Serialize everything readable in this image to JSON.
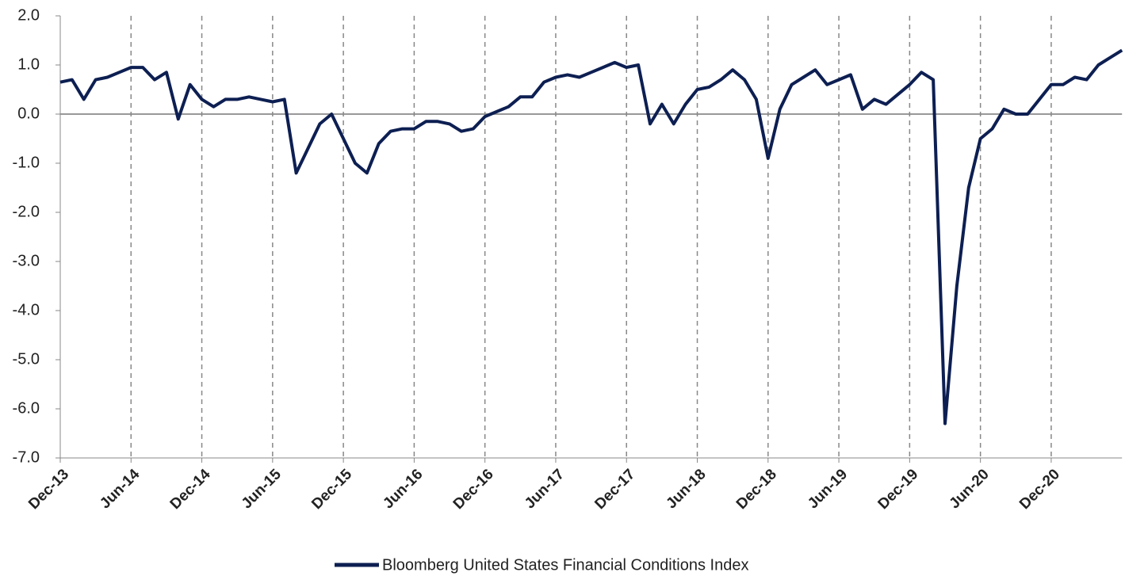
{
  "chart_data": {
    "type": "line",
    "categories": [
      "Dec-13",
      null,
      null,
      null,
      null,
      null,
      "Jun-14",
      null,
      null,
      null,
      null,
      null,
      "Dec-14",
      null,
      null,
      null,
      null,
      null,
      "Jun-15",
      null,
      null,
      null,
      null,
      null,
      "Dec-15",
      null,
      null,
      null,
      null,
      null,
      "Jun-16",
      null,
      null,
      null,
      null,
      null,
      "Dec-16",
      null,
      null,
      null,
      null,
      null,
      "Jun-17",
      null,
      null,
      null,
      null,
      null,
      "Dec-17",
      null,
      null,
      null,
      null,
      null,
      "Jun-18",
      null,
      null,
      null,
      null,
      null,
      "Dec-18",
      null,
      null,
      null,
      null,
      null,
      "Jun-19",
      null,
      null,
      null,
      null,
      null,
      "Dec-19",
      null,
      null,
      null,
      null,
      null,
      "Jun-20",
      null,
      null,
      null,
      null,
      null,
      "Dec-20",
      null,
      null,
      null,
      null,
      null,
      null
    ],
    "series": [
      {
        "name": "Bloomberg United States Financial Conditions Index",
        "color": "#0d1f52",
        "values": [
          0.65,
          0.7,
          0.3,
          0.7,
          0.75,
          0.85,
          0.95,
          0.95,
          0.7,
          0.85,
          -0.1,
          0.6,
          0.3,
          0.15,
          0.3,
          0.3,
          0.35,
          0.3,
          0.25,
          0.3,
          -1.2,
          -0.7,
          -0.2,
          0.0,
          -0.5,
          -1.0,
          -1.2,
          -0.6,
          -0.35,
          -0.3,
          -0.3,
          -0.15,
          -0.15,
          -0.2,
          -0.35,
          -0.3,
          -0.05,
          0.05,
          0.15,
          0.35,
          0.35,
          0.65,
          0.75,
          0.8,
          0.75,
          0.85,
          0.95,
          1.05,
          0.95,
          1.0,
          -0.2,
          0.2,
          -0.2,
          0.2,
          0.5,
          0.55,
          0.7,
          0.9,
          0.7,
          0.3,
          -0.9,
          0.1,
          0.6,
          0.75,
          0.9,
          0.6,
          0.7,
          0.8,
          0.1,
          0.3,
          0.2,
          0.4,
          0.6,
          0.85,
          0.7,
          -6.3,
          -3.5,
          -1.5,
          -0.5,
          -0.3,
          0.1,
          0.0,
          0.0,
          0.3,
          0.6,
          0.6,
          0.75,
          0.7,
          1.0,
          1.15,
          1.3
        ]
      }
    ],
    "ylim": [
      -7,
      2
    ],
    "yticks": [
      {
        "value": 2,
        "label": "2.0"
      },
      {
        "value": 1,
        "label": "1.0"
      },
      {
        "value": 0,
        "label": "0.0"
      },
      {
        "value": -1,
        "label": "-1.0"
      },
      {
        "value": -2,
        "label": "-2.0"
      },
      {
        "value": -3,
        "label": "-3.0"
      },
      {
        "value": -4,
        "label": "-4.0"
      },
      {
        "value": -5,
        "label": "-5.0"
      },
      {
        "value": -6,
        "label": "-6.0"
      },
      {
        "value": -7,
        "label": "-7.0"
      }
    ],
    "grid": true,
    "legend": "bottom"
  }
}
